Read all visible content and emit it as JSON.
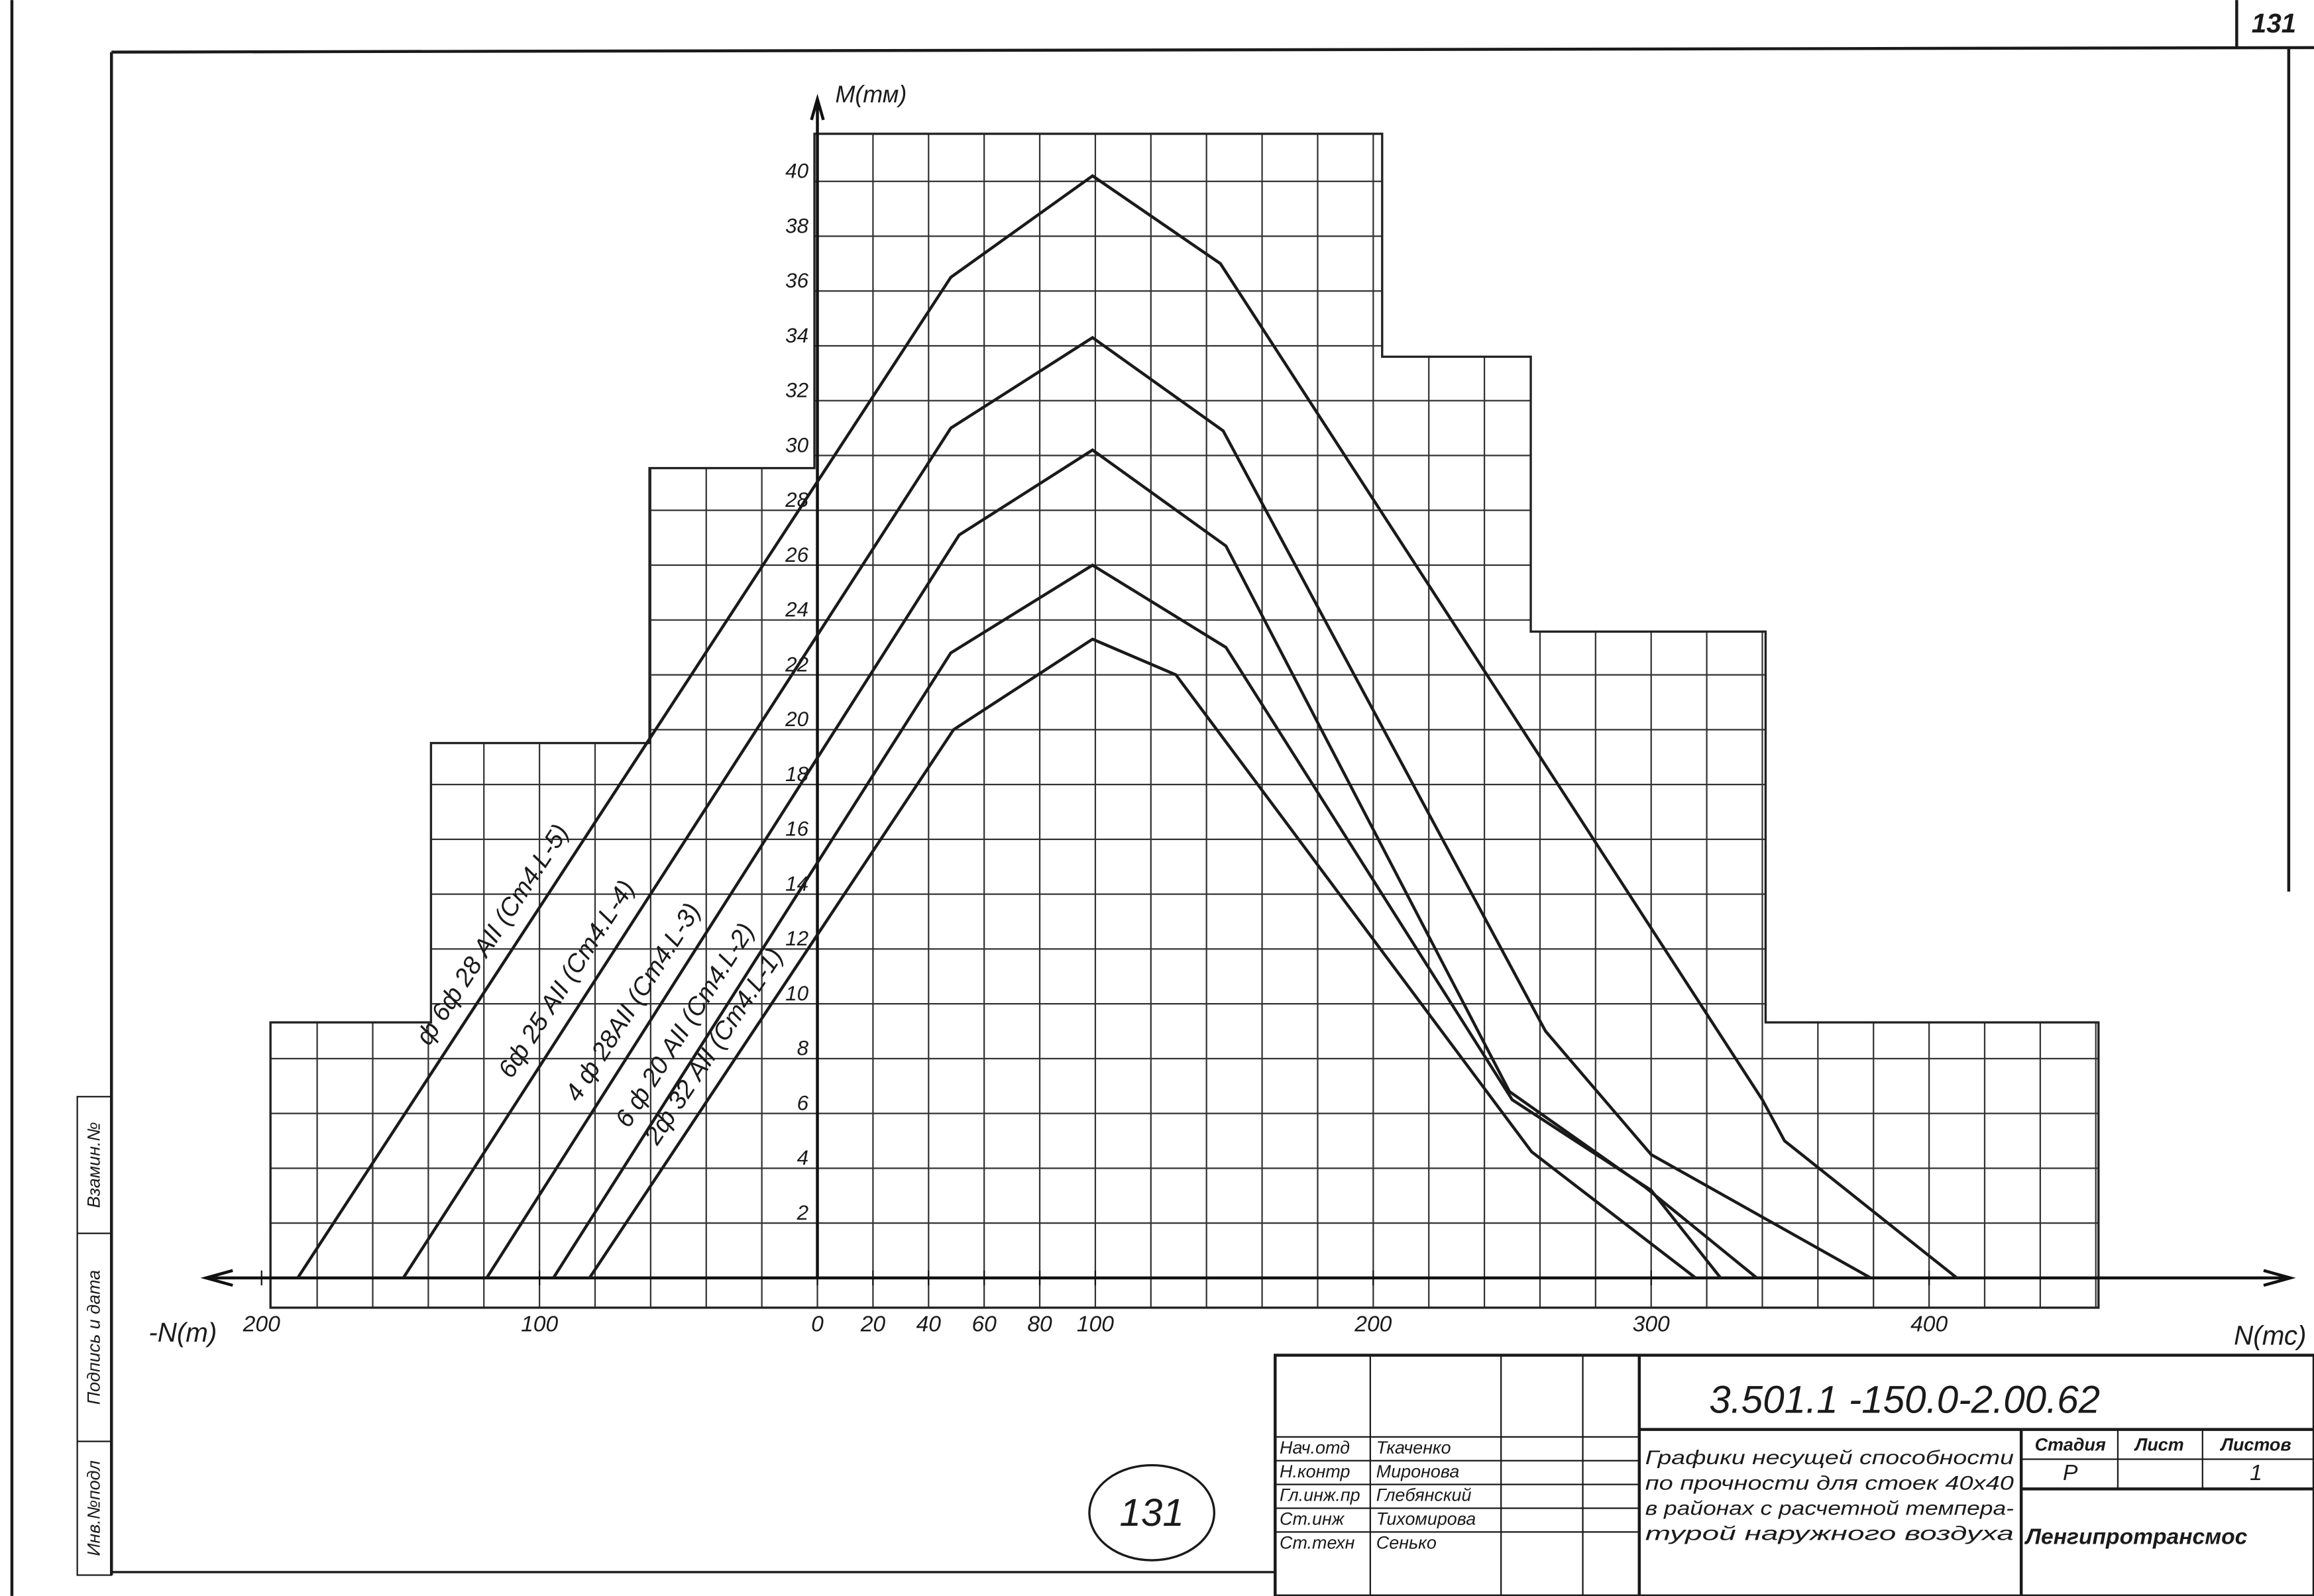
{
  "chart_data": {
    "type": "line",
    "y_label": "M(тм)",
    "x_label": "N(тс)",
    "x_label_negative": "-N(т)",
    "xlim": [
      -220,
      530
    ],
    "ylim": [
      0,
      43
    ],
    "xticks": [
      {
        "value": -200,
        "label": "200"
      },
      {
        "value": -100,
        "label": "100"
      },
      0,
      20,
      40,
      60,
      80,
      100,
      200,
      300,
      400
    ],
    "yticks": [
      2,
      4,
      6,
      8,
      10,
      12,
      14,
      16,
      18,
      20,
      22,
      24,
      26,
      28,
      30,
      32,
      34,
      36,
      38,
      40
    ],
    "grid": true,
    "color": "#1a1a1a",
    "series": [
      {
        "name": "ф 6ф 28 АII (Сm4.L-5)",
        "x": [
          -187,
          48,
          99,
          145,
          340,
          348,
          410
        ],
        "values": [
          0,
          36.5,
          40.2,
          37,
          6.5,
          5,
          0
        ]
      },
      {
        "name": "6ф 25 АII (Сm4.L-4)",
        "x": [
          -149,
          48,
          99,
          146,
          262,
          300,
          379
        ],
        "values": [
          0,
          31,
          34.3,
          30.9,
          9,
          4.5,
          0
        ]
      },
      {
        "name": "4 ф 28АII (Сm4.L-3)",
        "x": [
          -119,
          51,
          99,
          147,
          249,
          298,
          338
        ],
        "values": [
          0,
          27.1,
          30.2,
          26.7,
          6.8,
          3.3,
          0
        ]
      },
      {
        "name": "6 ф 20 АII (Сm4.L-2)",
        "x": [
          -95,
          48,
          99,
          147,
          250,
          300,
          325
        ],
        "values": [
          0,
          22.8,
          26,
          23,
          6.5,
          3.2,
          0
        ]
      },
      {
        "name": "2ф 32 АII (Сm4.L-1)",
        "x": [
          -82,
          49,
          99,
          129,
          257,
          316
        ],
        "values": [
          0,
          20,
          23.3,
          22,
          4.6,
          0
        ]
      }
    ]
  },
  "sheet_number": "131",
  "stamp": "131",
  "side_stamp": [
    "Инв.№подл",
    "Подпись и дата",
    "Взамин.№"
  ],
  "title_block": {
    "code": "3.501.1 -150.0-2.00.62",
    "rows": [
      [
        "Нач.отд",
        "Ткаченко"
      ],
      [
        "Н.контр",
        "Миронова"
      ],
      [
        "Гл.инж.пр",
        "Глебянский"
      ],
      [
        "Ст.инж",
        "Тихомирова"
      ],
      [
        "Ст.техн",
        "Сенько"
      ]
    ],
    "description": [
      "Графики несущей способности",
      "по прочности для стоек 40х40",
      "в районах с расчетной темпера-",
      "турой наружного воздуха"
    ],
    "stage_headers": [
      "Стадия",
      "Лист",
      "Листов"
    ],
    "stage": "Р",
    "sheet": "1",
    "organization": "Ленгипротрансмос"
  }
}
